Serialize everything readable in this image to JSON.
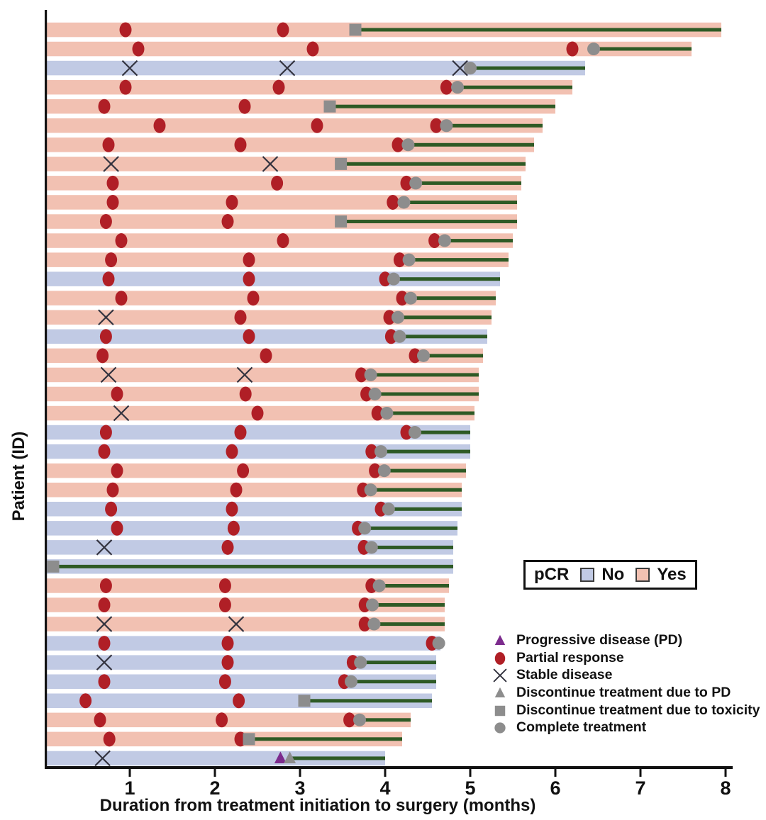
{
  "colors": {
    "pcr_yes": "#f2c1b2",
    "pcr_no": "#c1cae4",
    "treatment_line": "#2e5a25",
    "partial_response": "#b01f26",
    "stable_x": "#33333f",
    "gray_marker": "#8d8d8d",
    "progressive": "#7c2b8d",
    "axis": "#111111"
  },
  "chart_data": {
    "type": "bar",
    "subtype": "swimmer-plot",
    "title": "",
    "xlabel": "Duration from treatment initiation to surgery (months)",
    "ylabel": "Patient (ID)",
    "xlim": [
      0,
      8
    ],
    "xticks": [
      1,
      2,
      3,
      4,
      5,
      6,
      7,
      8
    ],
    "grid": false,
    "marker_codes": {
      "pr": "Partial response",
      "sd": "Stable disease",
      "tox": "Discontinue treatment due to toxicity",
      "ct": "Complete treatment",
      "pd": "Progressive disease (PD)",
      "dpd": "Discontinue treatment due to PD"
    },
    "bar_meaning": "Duration from treatment initiation to surgery (months); green line = period after last treatment assessment until surgery",
    "patients": [
      {
        "pcr": "Yes",
        "end": 7.95,
        "line_start": 3.65,
        "markers": [
          {
            "t": "pr",
            "m": 0.95
          },
          {
            "t": "pr",
            "m": 2.8
          },
          {
            "t": "tox",
            "m": 3.65
          }
        ]
      },
      {
        "pcr": "Yes",
        "end": 7.6,
        "line_start": 6.45,
        "markers": [
          {
            "t": "pr",
            "m": 1.1
          },
          {
            "t": "pr",
            "m": 3.15
          },
          {
            "t": "pr",
            "m": 6.2
          },
          {
            "t": "ct",
            "m": 6.45
          }
        ]
      },
      {
        "pcr": "No",
        "end": 6.35,
        "line_start": 5.0,
        "markers": [
          {
            "t": "sd",
            "m": 1.0
          },
          {
            "t": "sd",
            "m": 2.85
          },
          {
            "t": "sd",
            "m": 4.88
          },
          {
            "t": "ct",
            "m": 5.0
          }
        ]
      },
      {
        "pcr": "Yes",
        "end": 6.2,
        "line_start": 4.85,
        "markers": [
          {
            "t": "pr",
            "m": 0.95
          },
          {
            "t": "pr",
            "m": 2.75
          },
          {
            "t": "pr",
            "m": 4.72
          },
          {
            "t": "ct",
            "m": 4.85
          }
        ]
      },
      {
        "pcr": "Yes",
        "end": 6.0,
        "line_start": 3.35,
        "markers": [
          {
            "t": "pr",
            "m": 0.7
          },
          {
            "t": "pr",
            "m": 2.35
          },
          {
            "t": "tox",
            "m": 3.35
          }
        ]
      },
      {
        "pcr": "Yes",
        "end": 5.85,
        "line_start": 4.72,
        "markers": [
          {
            "t": "pr",
            "m": 1.35
          },
          {
            "t": "pr",
            "m": 3.2
          },
          {
            "t": "pr",
            "m": 4.6
          },
          {
            "t": "ct",
            "m": 4.72
          }
        ]
      },
      {
        "pcr": "Yes",
        "end": 5.75,
        "line_start": 4.27,
        "markers": [
          {
            "t": "pr",
            "m": 0.75
          },
          {
            "t": "pr",
            "m": 2.3
          },
          {
            "t": "pr",
            "m": 4.15
          },
          {
            "t": "ct",
            "m": 4.27
          }
        ]
      },
      {
        "pcr": "Yes",
        "end": 5.65,
        "line_start": 3.48,
        "markers": [
          {
            "t": "sd",
            "m": 0.78
          },
          {
            "t": "sd",
            "m": 2.65
          },
          {
            "t": "tox",
            "m": 3.48
          }
        ]
      },
      {
        "pcr": "Yes",
        "end": 5.6,
        "line_start": 4.36,
        "markers": [
          {
            "t": "pr",
            "m": 0.8
          },
          {
            "t": "pr",
            "m": 2.73
          },
          {
            "t": "pr",
            "m": 4.25
          },
          {
            "t": "ct",
            "m": 4.36
          }
        ]
      },
      {
        "pcr": "Yes",
        "end": 5.55,
        "line_start": 4.22,
        "markers": [
          {
            "t": "pr",
            "m": 0.8
          },
          {
            "t": "pr",
            "m": 2.2
          },
          {
            "t": "pr",
            "m": 4.09
          },
          {
            "t": "ct",
            "m": 4.22
          }
        ]
      },
      {
        "pcr": "Yes",
        "end": 5.55,
        "line_start": 3.48,
        "markers": [
          {
            "t": "pr",
            "m": 0.72
          },
          {
            "t": "pr",
            "m": 2.15
          },
          {
            "t": "tox",
            "m": 3.48
          }
        ]
      },
      {
        "pcr": "Yes",
        "end": 5.5,
        "line_start": 4.7,
        "markers": [
          {
            "t": "pr",
            "m": 0.9
          },
          {
            "t": "pr",
            "m": 2.8
          },
          {
            "t": "pr",
            "m": 4.58
          },
          {
            "t": "ct",
            "m": 4.7
          }
        ]
      },
      {
        "pcr": "Yes",
        "end": 5.45,
        "line_start": 4.28,
        "markers": [
          {
            "t": "pr",
            "m": 0.78
          },
          {
            "t": "pr",
            "m": 2.4
          },
          {
            "t": "pr",
            "m": 4.17
          },
          {
            "t": "ct",
            "m": 4.28
          }
        ]
      },
      {
        "pcr": "No",
        "end": 5.35,
        "line_start": 4.1,
        "markers": [
          {
            "t": "pr",
            "m": 0.75
          },
          {
            "t": "pr",
            "m": 2.4
          },
          {
            "t": "pr",
            "m": 4.0
          },
          {
            "t": "ct",
            "m": 4.1
          }
        ]
      },
      {
        "pcr": "Yes",
        "end": 5.3,
        "line_start": 4.3,
        "markers": [
          {
            "t": "pr",
            "m": 0.9
          },
          {
            "t": "pr",
            "m": 2.45
          },
          {
            "t": "pr",
            "m": 4.2
          },
          {
            "t": "ct",
            "m": 4.3
          }
        ]
      },
      {
        "pcr": "Yes",
        "end": 5.25,
        "line_start": 4.15,
        "markers": [
          {
            "t": "sd",
            "m": 0.72
          },
          {
            "t": "pr",
            "m": 2.3
          },
          {
            "t": "pr",
            "m": 4.05
          },
          {
            "t": "ct",
            "m": 4.15
          }
        ]
      },
      {
        "pcr": "No",
        "end": 5.2,
        "line_start": 4.17,
        "markers": [
          {
            "t": "pr",
            "m": 0.72
          },
          {
            "t": "pr",
            "m": 2.4
          },
          {
            "t": "pr",
            "m": 4.07
          },
          {
            "t": "ct",
            "m": 4.17
          }
        ]
      },
      {
        "pcr": "Yes",
        "end": 5.15,
        "line_start": 4.45,
        "markers": [
          {
            "t": "pr",
            "m": 0.68
          },
          {
            "t": "pr",
            "m": 2.6
          },
          {
            "t": "pr",
            "m": 4.35
          },
          {
            "t": "ct",
            "m": 4.45
          }
        ]
      },
      {
        "pcr": "Yes",
        "end": 5.1,
        "line_start": 3.83,
        "markers": [
          {
            "t": "sd",
            "m": 0.75
          },
          {
            "t": "sd",
            "m": 2.35
          },
          {
            "t": "pr",
            "m": 3.72
          },
          {
            "t": "ct",
            "m": 3.83
          }
        ]
      },
      {
        "pcr": "Yes",
        "end": 5.1,
        "line_start": 3.88,
        "markers": [
          {
            "t": "pr",
            "m": 0.85
          },
          {
            "t": "pr",
            "m": 2.36
          },
          {
            "t": "pr",
            "m": 3.78
          },
          {
            "t": "ct",
            "m": 3.88
          }
        ]
      },
      {
        "pcr": "Yes",
        "end": 5.05,
        "line_start": 4.02,
        "markers": [
          {
            "t": "sd",
            "m": 0.9
          },
          {
            "t": "pr",
            "m": 2.5
          },
          {
            "t": "pr",
            "m": 3.91
          },
          {
            "t": "ct",
            "m": 4.02
          }
        ]
      },
      {
        "pcr": "No",
        "end": 5.0,
        "line_start": 4.35,
        "markers": [
          {
            "t": "pr",
            "m": 0.72
          },
          {
            "t": "pr",
            "m": 2.3
          },
          {
            "t": "pr",
            "m": 4.25
          },
          {
            "t": "ct",
            "m": 4.35
          }
        ]
      },
      {
        "pcr": "No",
        "end": 5.0,
        "line_start": 3.95,
        "markers": [
          {
            "t": "pr",
            "m": 0.7
          },
          {
            "t": "pr",
            "m": 2.2
          },
          {
            "t": "pr",
            "m": 3.84
          },
          {
            "t": "ct",
            "m": 3.95
          }
        ]
      },
      {
        "pcr": "Yes",
        "end": 4.95,
        "line_start": 3.99,
        "markers": [
          {
            "t": "pr",
            "m": 0.85
          },
          {
            "t": "pr",
            "m": 2.33
          },
          {
            "t": "pr",
            "m": 3.88
          },
          {
            "t": "ct",
            "m": 3.99
          }
        ]
      },
      {
        "pcr": "Yes",
        "end": 4.9,
        "line_start": 3.83,
        "markers": [
          {
            "t": "pr",
            "m": 0.8
          },
          {
            "t": "pr",
            "m": 2.25
          },
          {
            "t": "pr",
            "m": 3.74
          },
          {
            "t": "ct",
            "m": 3.83
          }
        ]
      },
      {
        "pcr": "No",
        "end": 4.9,
        "line_start": 4.04,
        "markers": [
          {
            "t": "pr",
            "m": 0.78
          },
          {
            "t": "pr",
            "m": 2.2
          },
          {
            "t": "pr",
            "m": 3.95
          },
          {
            "t": "ct",
            "m": 4.04
          }
        ]
      },
      {
        "pcr": "No",
        "end": 4.85,
        "line_start": 3.76,
        "markers": [
          {
            "t": "pr",
            "m": 0.85
          },
          {
            "t": "pr",
            "m": 2.22
          },
          {
            "t": "pr",
            "m": 3.68
          },
          {
            "t": "ct",
            "m": 3.76
          }
        ]
      },
      {
        "pcr": "No",
        "end": 4.8,
        "line_start": 3.84,
        "markers": [
          {
            "t": "sd",
            "m": 0.7
          },
          {
            "t": "pr",
            "m": 2.15
          },
          {
            "t": "pr",
            "m": 3.75
          },
          {
            "t": "ct",
            "m": 3.84
          }
        ]
      },
      {
        "pcr": "No",
        "end": 4.8,
        "line_start": 0.1,
        "markers": [
          {
            "t": "tox",
            "m": 0.1
          }
        ]
      },
      {
        "pcr": "Yes",
        "end": 4.75,
        "line_start": 3.93,
        "markers": [
          {
            "t": "pr",
            "m": 0.72
          },
          {
            "t": "pr",
            "m": 2.12
          },
          {
            "t": "pr",
            "m": 3.84
          },
          {
            "t": "ct",
            "m": 3.93
          }
        ]
      },
      {
        "pcr": "Yes",
        "end": 4.7,
        "line_start": 3.85,
        "markers": [
          {
            "t": "pr",
            "m": 0.7
          },
          {
            "t": "pr",
            "m": 2.12
          },
          {
            "t": "pr",
            "m": 3.76
          },
          {
            "t": "ct",
            "m": 3.85
          }
        ]
      },
      {
        "pcr": "Yes",
        "end": 4.7,
        "line_start": 3.87,
        "markers": [
          {
            "t": "sd",
            "m": 0.7
          },
          {
            "t": "sd",
            "m": 2.25
          },
          {
            "t": "pr",
            "m": 3.76
          },
          {
            "t": "ct",
            "m": 3.87
          }
        ]
      },
      {
        "pcr": "No",
        "end": 4.65,
        "line_start": 4.63,
        "markers": [
          {
            "t": "pr",
            "m": 0.7
          },
          {
            "t": "pr",
            "m": 2.15
          },
          {
            "t": "pr",
            "m": 4.55
          },
          {
            "t": "ct",
            "m": 4.63
          }
        ]
      },
      {
        "pcr": "No",
        "end": 4.6,
        "line_start": 3.71,
        "markers": [
          {
            "t": "sd",
            "m": 0.7
          },
          {
            "t": "pr",
            "m": 2.15
          },
          {
            "t": "pr",
            "m": 3.62
          },
          {
            "t": "ct",
            "m": 3.71
          }
        ]
      },
      {
        "pcr": "No",
        "end": 4.6,
        "line_start": 3.6,
        "markers": [
          {
            "t": "pr",
            "m": 0.7
          },
          {
            "t": "pr",
            "m": 2.12
          },
          {
            "t": "pr",
            "m": 3.52
          },
          {
            "t": "ct",
            "m": 3.6
          }
        ]
      },
      {
        "pcr": "No",
        "end": 4.55,
        "line_start": 3.05,
        "markers": [
          {
            "t": "pr",
            "m": 0.48
          },
          {
            "t": "pr",
            "m": 2.28
          },
          {
            "t": "tox",
            "m": 3.05
          }
        ]
      },
      {
        "pcr": "Yes",
        "end": 4.3,
        "line_start": 3.7,
        "markers": [
          {
            "t": "pr",
            "m": 0.65
          },
          {
            "t": "pr",
            "m": 2.08
          },
          {
            "t": "pr",
            "m": 3.58
          },
          {
            "t": "ct",
            "m": 3.7
          }
        ]
      },
      {
        "pcr": "Yes",
        "end": 4.2,
        "line_start": 2.4,
        "markers": [
          {
            "t": "pr",
            "m": 0.76
          },
          {
            "t": "pr",
            "m": 2.3
          },
          {
            "t": "tox",
            "m": 2.4
          }
        ]
      },
      {
        "pcr": "No",
        "end": 4.0,
        "line_start": 2.88,
        "markers": [
          {
            "t": "sd",
            "m": 0.68
          },
          {
            "t": "pd",
            "m": 2.77
          },
          {
            "t": "dpd",
            "m": 2.88
          }
        ]
      }
    ]
  },
  "pcr_legend": {
    "title": "pCR",
    "items": [
      {
        "label": "No",
        "color_key": "pcr_no"
      },
      {
        "label": "Yes",
        "color_key": "pcr_yes"
      }
    ]
  },
  "marker_legend": {
    "items": [
      {
        "marker": "pd",
        "label": "Progressive disease (PD)"
      },
      {
        "marker": "pr",
        "label": "Partial response"
      },
      {
        "marker": "sd",
        "label": "Stable disease"
      },
      {
        "marker": "dpd",
        "label": "Discontinue treatment due to PD"
      },
      {
        "marker": "tox",
        "label": "Discontinue treatment due to toxicity"
      },
      {
        "marker": "ct",
        "label": "Complete treatment"
      }
    ]
  }
}
